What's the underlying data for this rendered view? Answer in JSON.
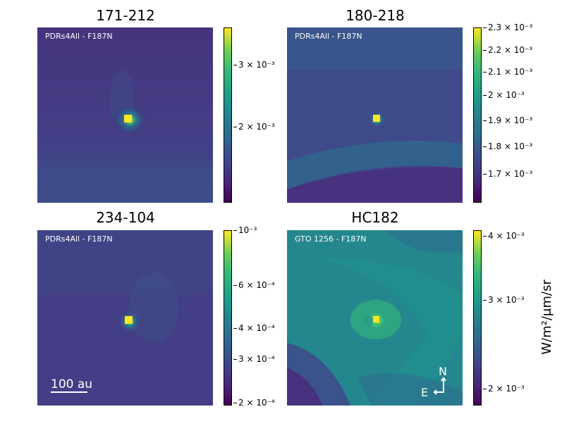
{
  "panels": [
    {
      "title": "171-212",
      "instrument": "PDRs4All - F187N",
      "colorbar_ticks": [
        "3 × 10⁻³",
        "2 × 10⁻³"
      ]
    },
    {
      "title": "180-218",
      "instrument": "PDRs4All - F187N",
      "colorbar_ticks": [
        "2.3 × 10⁻³",
        "2.2 × 10⁻³",
        "2.1 × 10⁻³",
        "2 × 10⁻³",
        "1.9 × 10⁻³",
        "1.8 × 10⁻³",
        "1.7 × 10⁻³"
      ]
    },
    {
      "title": "234-104",
      "instrument": "PDRs4All - F187N",
      "colorbar_ticks": [
        "10⁻³",
        "6 × 10⁻⁴",
        "4 × 10⁻⁴",
        "3 × 10⁻⁴",
        "2 × 10⁻⁴"
      ],
      "scalebar_label": "100 au"
    },
    {
      "title": "HC182",
      "instrument": "GTO 1256 - F187N",
      "colorbar_ticks": [
        "4 × 10⁻³",
        "3 × 10⁻³",
        "2 × 10⁻³"
      ],
      "compass": {
        "north": "N",
        "east": "E"
      }
    }
  ],
  "colorbar_label": "W/m²/μm/sr",
  "colormap": "viridis"
}
